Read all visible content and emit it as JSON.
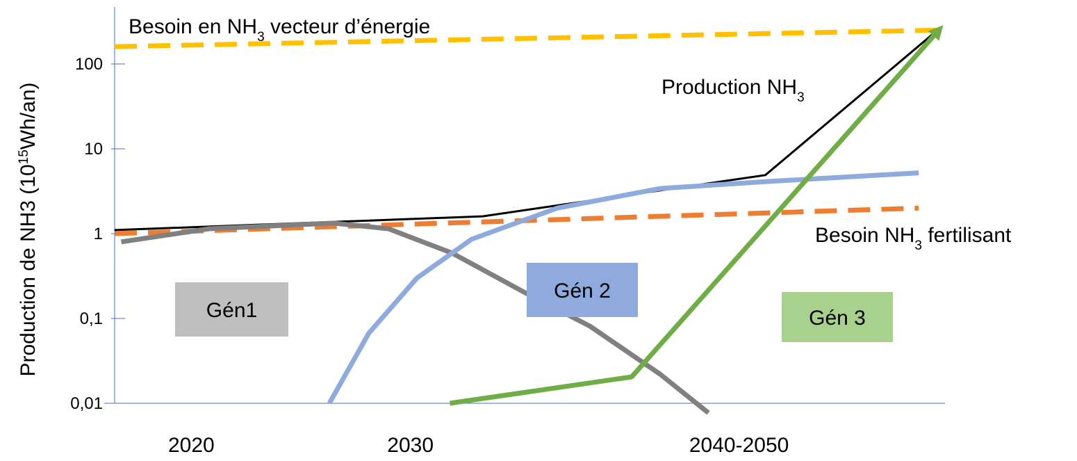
{
  "chart_data": {
    "type": "line",
    "y_label": [
      "Production de NH3 (10",
      "15",
      "Wh/an)"
    ],
    "log_y": true,
    "ylim": [
      0.01,
      400
    ],
    "yticks": [
      {
        "value": 0.01,
        "label": "0,01"
      },
      {
        "value": 0.1,
        "label": "0,1"
      },
      1,
      10,
      100
    ],
    "xlim": [
      2016.5,
      2054.4
    ],
    "xticks": [
      2020,
      2030,
      {
        "value": 2045,
        "label": "2040-2050"
      }
    ],
    "axis_color": "#4472c4",
    "series": [
      {
        "label": [
          "Besoin en NH",
          "3",
          " vecteur d’énergie"
        ],
        "color": "#ffc000",
        "dashed": true,
        "x": [
          2016.5,
          2054.0
        ],
        "values": [
          160,
          250
        ]
      },
      {
        "label": [
          "Besoin NH",
          "3",
          " fertilisant"
        ],
        "color": "#ed7d31",
        "dashed": true,
        "x": [
          2016.5,
          2053.2
        ],
        "values": [
          1,
          2
        ]
      },
      {
        "label": [
          "Production NH",
          "3"
        ],
        "color": "#000000",
        "dashed": false,
        "x": [
          2016.5,
          2033.3,
          2046.2,
          2053.8
        ],
        "values": [
          1.1,
          1.6,
          4.9,
          220
        ]
      },
      {
        "color": "#808080",
        "dashed": false,
        "x": [
          2016.8,
          2020.8,
          2026.5,
          2029.0,
          2031.9,
          2035.1,
          2038.2,
          2041.4,
          2043.6
        ],
        "values": [
          0.8,
          1.14,
          1.33,
          1.14,
          0.59,
          0.21,
          0.081,
          0.022,
          0.0077
        ]
      },
      {
        "color": "#8faadc",
        "dashed": false,
        "x": [
          2026.3,
          2028.1,
          2030.3,
          2032.8,
          2036.7,
          2041.4,
          2046.2,
          2053.2
        ],
        "values": [
          0.01,
          0.067,
          0.3,
          0.86,
          2.0,
          3.4,
          4.1,
          5.2
        ]
      },
      {
        "color": "#70ad47",
        "dashed": false,
        "arrow": true,
        "x": [
          2031.8,
          2040.1,
          2054.1
        ],
        "values": [
          0.01,
          0.0205,
          247
        ]
      }
    ],
    "boxes": [
      {
        "text": "Gén1",
        "color": "#bfbfbf"
      },
      {
        "text": "Gén 2",
        "color": "#8faadc"
      },
      {
        "text": "Gén 3",
        "color": "#a9d18e"
      }
    ]
  }
}
